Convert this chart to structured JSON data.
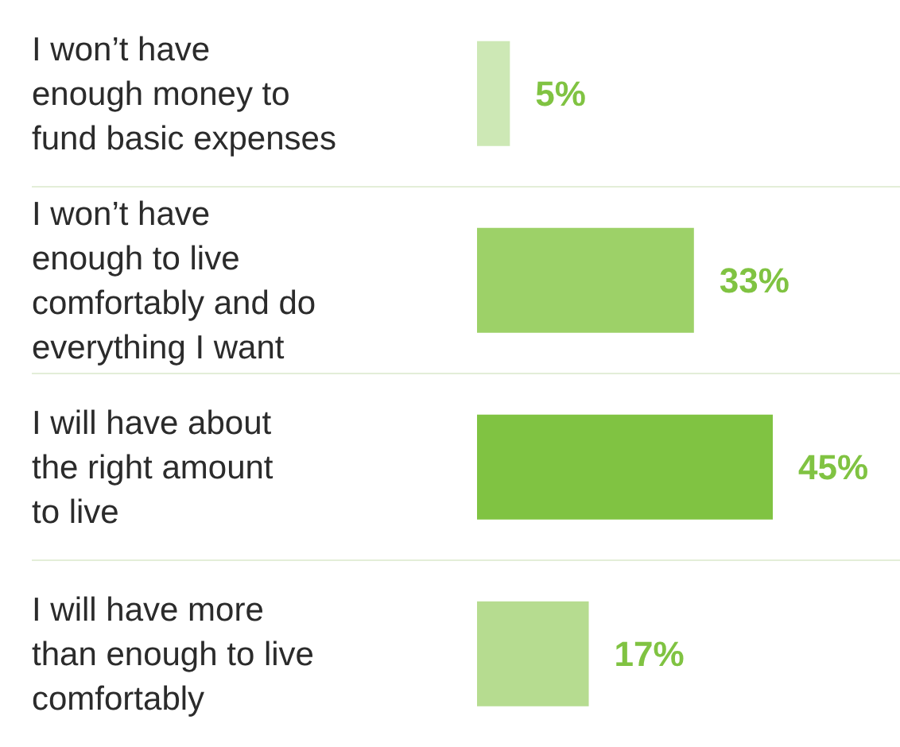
{
  "chart_data": {
    "type": "bar",
    "orientation": "horizontal",
    "data_labels": true,
    "categories": [
      "I won’t have\nenough money to\nfund basic expenses",
      "I won’t have\nenough to live\ncomfortably and do\neverything I want",
      "I will have about\nthe right amount\nto live",
      "I will have more\nthan enough to live\ncomfortably"
    ],
    "values": [
      5,
      33,
      45,
      17
    ],
    "colors": [
      "#cde8b5",
      "#9dd168",
      "#80c342",
      "#b6dc90"
    ],
    "value_labels": [
      "5%",
      "33%",
      "45%",
      "17%"
    ]
  }
}
